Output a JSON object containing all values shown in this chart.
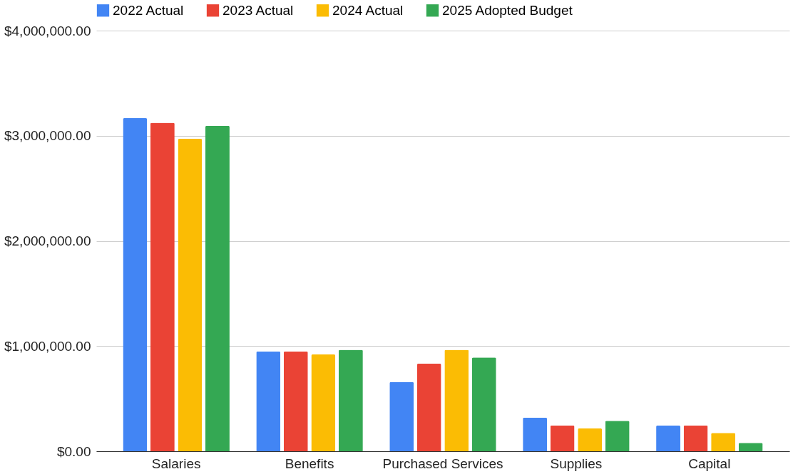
{
  "chart_data": {
    "type": "bar",
    "categories": [
      "Salaries",
      "Benefits",
      "Purchased Services",
      "Supplies",
      "Capital"
    ],
    "series": [
      {
        "name": "2022 Actual",
        "color": "#4285f4",
        "values": [
          3167000,
          949000,
          659000,
          319000,
          246000
        ]
      },
      {
        "name": "2023 Actual",
        "color": "#ea4335",
        "values": [
          3123000,
          949000,
          833000,
          246000,
          246000
        ]
      },
      {
        "name": "2024 Actual",
        "color": "#fbbc04",
        "values": [
          2971000,
          920000,
          964000,
          217000,
          174000
        ]
      },
      {
        "name": "2025 Adopted Budget",
        "color": "#34a853",
        "values": [
          3094000,
          964000,
          891000,
          290000,
          80000
        ]
      }
    ],
    "ylim": [
      0,
      4000000
    ],
    "yticks": [
      {
        "value": 0,
        "label": "$0.00"
      },
      {
        "value": 1000000,
        "label": "$1,000,000.00"
      },
      {
        "value": 2000000,
        "label": "$2,000,000.00"
      },
      {
        "value": 3000000,
        "label": "$3,000,000.00"
      },
      {
        "value": 4000000,
        "label": "$4,000,000.00"
      }
    ],
    "grid": "y",
    "legend": "top"
  }
}
